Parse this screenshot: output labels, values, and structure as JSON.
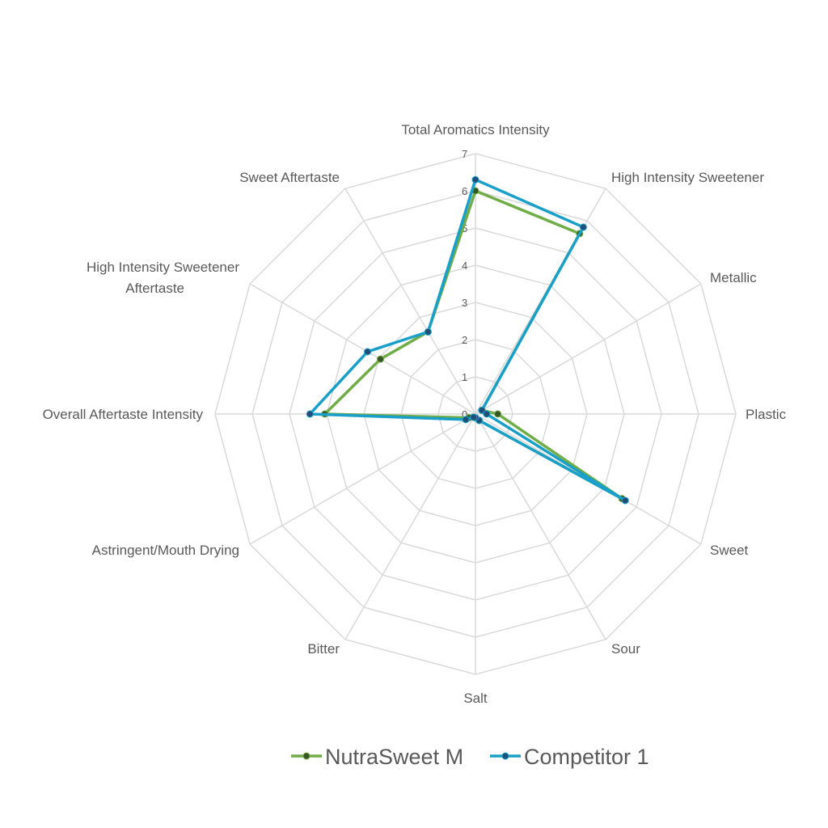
{
  "chart_data": {
    "type": "radar",
    "title": "",
    "categories": [
      "Total Aromatics Intensity",
      "High Intensity Sweetener",
      "Metallic",
      "Plastic",
      "Sweet",
      "Sour",
      "Salt",
      "Bitter",
      "Astringent/Mouth Drying",
      "Overall Aftertaste Intensity",
      "High Intensity Sweetener Aftertaste",
      "Sweet Aftertaste"
    ],
    "rlim": [
      0,
      7
    ],
    "ticks": [
      "0",
      "1",
      "2",
      "3",
      "4",
      "5",
      "6",
      "7"
    ],
    "legend_position": "bottom",
    "series": [
      {
        "name": "NutraSweet M",
        "color": "#70AD47",
        "marker": "#375623",
        "values": [
          6.0,
          5.6,
          0.2,
          0.6,
          4.55,
          0.2,
          0.1,
          0.1,
          0.2,
          4.05,
          2.95,
          2.55
        ]
      },
      {
        "name": "Competitor 1",
        "color": "#1AA0C8",
        "marker": "#1F4E79",
        "values": [
          6.3,
          5.8,
          0.2,
          0.3,
          4.65,
          0.2,
          0.1,
          0.1,
          0.3,
          4.45,
          3.35,
          2.55
        ]
      }
    ]
  }
}
